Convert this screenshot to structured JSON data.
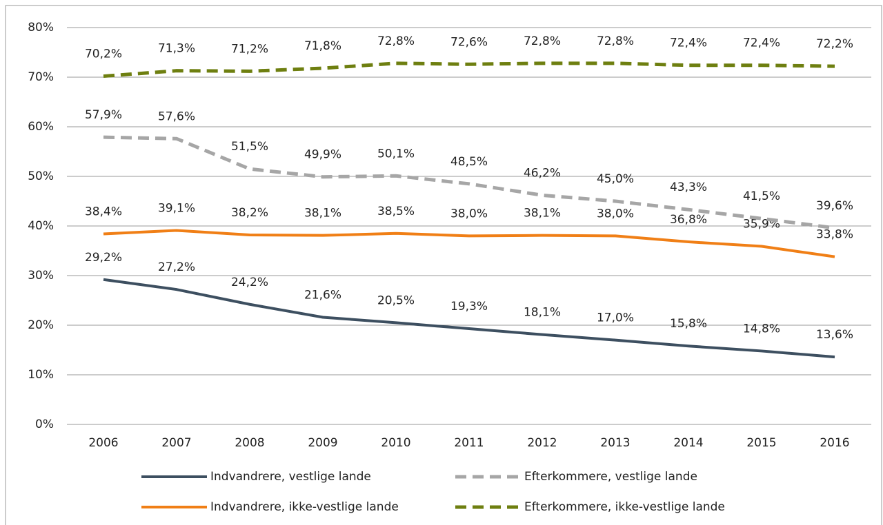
{
  "chart_data": {
    "type": "line",
    "categories": [
      "2006",
      "2007",
      "2008",
      "2009",
      "2010",
      "2011",
      "2012",
      "2013",
      "2014",
      "2015",
      "2016"
    ],
    "ylim": [
      0,
      80
    ],
    "yticks": [
      {
        "value": 0,
        "label": "0%"
      },
      {
        "value": 10,
        "label": "10%"
      },
      {
        "value": 20,
        "label": "20%"
      },
      {
        "value": 30,
        "label": "30%"
      },
      {
        "value": 40,
        "label": "40%"
      },
      {
        "value": 50,
        "label": "50%"
      },
      {
        "value": 60,
        "label": "60%"
      },
      {
        "value": 70,
        "label": "70%"
      },
      {
        "value": 80,
        "label": "80%"
      }
    ],
    "grid": true,
    "series": [
      {
        "name": "Indvandrere, vestlige lande",
        "color": "#3d4f60",
        "dashed": false,
        "values": [
          29.2,
          27.2,
          24.2,
          21.6,
          20.5,
          19.3,
          18.1,
          17.0,
          15.8,
          14.8,
          13.6
        ],
        "value_labels": [
          "29,2%",
          "27,2%",
          "24,2%",
          "21,6%",
          "20,5%",
          "19,3%",
          "18,1%",
          "17,0%",
          "15,8%",
          "14,8%",
          "13,6%"
        ]
      },
      {
        "name": "Indvandrere, ikke-vestlige lande",
        "color": "#f07f16",
        "dashed": false,
        "values": [
          38.4,
          39.1,
          38.2,
          38.1,
          38.5,
          38.0,
          38.1,
          38.0,
          36.8,
          35.9,
          33.8
        ],
        "value_labels": [
          "38,4%",
          "39,1%",
          "38,2%",
          "38,1%",
          "38,5%",
          "38,0%",
          "38,1%",
          "38,0%",
          "36,8%",
          "35,9%",
          "33,8%"
        ]
      },
      {
        "name": "Efterkommere, vestlige lande",
        "color": "#a6a6a6",
        "dashed": true,
        "values": [
          57.9,
          57.6,
          51.5,
          49.9,
          50.1,
          48.5,
          46.2,
          45.0,
          43.3,
          41.5,
          39.6
        ],
        "value_labels": [
          "57,9%",
          "57,6%",
          "51,5%",
          "49,9%",
          "50,1%",
          "48,5%",
          "46,2%",
          "45,0%",
          "43,3%",
          "41,5%",
          "39,6%"
        ]
      },
      {
        "name": "Efterkommere, ikke-vestlige lande",
        "color": "#6e7f10",
        "dashed": true,
        "values": [
          70.2,
          71.3,
          71.2,
          71.8,
          72.8,
          72.6,
          72.8,
          72.8,
          72.4,
          72.4,
          72.2
        ],
        "value_labels": [
          "70,2%",
          "71,3%",
          "71,2%",
          "71,8%",
          "72,8%",
          "72,6%",
          "72,8%",
          "72,8%",
          "72,4%",
          "72,4%",
          "72,2%"
        ]
      }
    ]
  }
}
